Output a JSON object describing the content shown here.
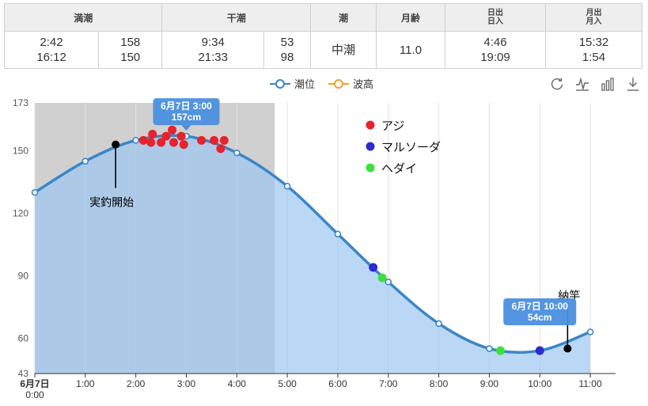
{
  "tide_table": {
    "headers": {
      "high_tide": "満潮",
      "low_tide": "干潮",
      "tide_type": "潮",
      "moon_age": "月齢",
      "sunrise": "日出",
      "sunset": "日入",
      "moonrise": "月出",
      "moonset": "月入"
    },
    "high": [
      {
        "time": "2:42",
        "level": "158"
      },
      {
        "time": "16:12",
        "level": "150"
      }
    ],
    "low": [
      {
        "time": "9:34",
        "level": "53"
      },
      {
        "time": "21:33",
        "level": "98"
      }
    ],
    "tide_type": "中潮",
    "moon_age": "11.0",
    "sun": {
      "rise": "4:46",
      "set": "19:09"
    },
    "moon": {
      "rise": "15:32",
      "set": "1:54"
    }
  },
  "legend": {
    "tide_level": "潮位",
    "wave_height": "波高",
    "tide_color": "#3a86c8",
    "wave_color": "#f0a030"
  },
  "toolbox": [
    "refresh-icon",
    "line-chart-icon",
    "bar-chart-icon",
    "download-icon"
  ],
  "chart_data": {
    "type": "line",
    "x_labels": [
      "6月7日",
      "1:00",
      "2:00",
      "3:00",
      "4:00",
      "5:00",
      "6:00",
      "7:00",
      "8:00",
      "9:00",
      "10:00",
      "11:00"
    ],
    "x_sublabel": "0:00",
    "y_ticks": [
      43,
      60,
      90,
      120,
      150,
      173
    ],
    "ylim": [
      43,
      173
    ],
    "xlim": [
      0,
      11.5
    ],
    "series": [
      {
        "name": "潮位",
        "color": "#3a86c8",
        "x": [
          0,
          1,
          2,
          3,
          4,
          5,
          6,
          7,
          8,
          9,
          10,
          11
        ],
        "values": [
          130,
          145,
          155,
          157,
          149,
          133,
          110,
          87,
          67,
          55,
          54,
          63
        ]
      }
    ],
    "shaded_region": {
      "x_start": 0,
      "x_end": 4.75,
      "color": "#c8c8c8"
    },
    "catches": {
      "legend": [
        {
          "label": "アジ",
          "color": "#e8222a"
        },
        {
          "label": "マルソーダ",
          "color": "#2b2bd0"
        },
        {
          "label": "ヘダイ",
          "color": "#3ce03c"
        }
      ],
      "points": [
        {
          "fish": "アジ",
          "x": 2.15,
          "y": 155
        },
        {
          "fish": "アジ",
          "x": 2.3,
          "y": 154
        },
        {
          "fish": "アジ",
          "x": 2.33,
          "y": 158
        },
        {
          "fish": "アジ",
          "x": 2.5,
          "y": 154
        },
        {
          "fish": "アジ",
          "x": 2.6,
          "y": 157
        },
        {
          "fish": "アジ",
          "x": 2.72,
          "y": 160
        },
        {
          "fish": "アジ",
          "x": 2.75,
          "y": 154
        },
        {
          "fish": "アジ",
          "x": 2.9,
          "y": 157
        },
        {
          "fish": "アジ",
          "x": 2.95,
          "y": 153
        },
        {
          "fish": "アジ",
          "x": 3.3,
          "y": 155
        },
        {
          "fish": "アジ",
          "x": 3.55,
          "y": 155
        },
        {
          "fish": "アジ",
          "x": 3.68,
          "y": 151
        },
        {
          "fish": "アジ",
          "x": 3.75,
          "y": 155
        },
        {
          "fish": "マルソーダ",
          "x": 6.7,
          "y": 94
        },
        {
          "fish": "マルソーダ",
          "x": 10.0,
          "y": 54
        },
        {
          "fish": "ヘダイ",
          "x": 6.88,
          "y": 89
        },
        {
          "fish": "ヘダイ",
          "x": 9.22,
          "y": 54
        }
      ]
    },
    "annotations": [
      {
        "label": "実釣開始",
        "x": 1.6,
        "y": 153
      },
      {
        "label": "納竿",
        "x": 10.55,
        "y": 55
      }
    ],
    "tooltips": [
      {
        "line1": "6月7日 3:00",
        "line2": "157cm",
        "x": 3,
        "y": 157
      },
      {
        "line1": "6月7日 10:00",
        "line2": "54cm",
        "x": 10,
        "y": 54
      }
    ]
  }
}
